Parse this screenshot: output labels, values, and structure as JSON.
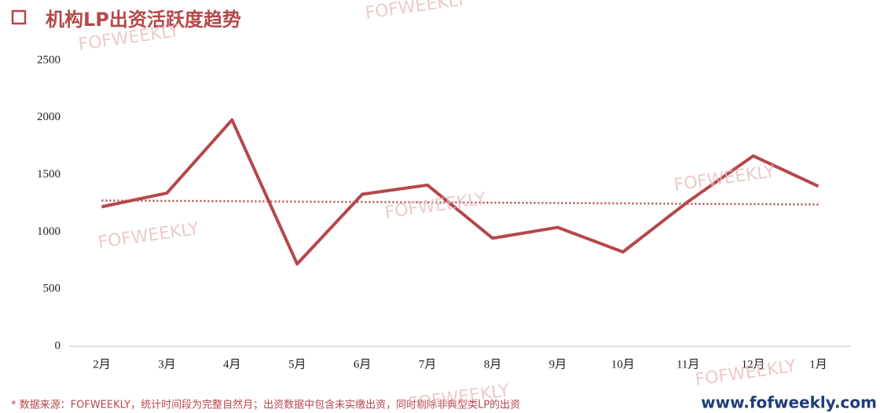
{
  "title": "机构LP出资活跃度趋势",
  "chart_data": {
    "type": "line",
    "categories": [
      "2月",
      "3月",
      "4月",
      "5月",
      "6月",
      "7月",
      "8月",
      "9月",
      "10月",
      "11月",
      "12月",
      "1月"
    ],
    "series": [
      {
        "color": "#b5474a",
        "style": "solid",
        "values": [
          1220,
          1340,
          1980,
          720,
          1330,
          1410,
          945,
          1040,
          825,
          1265,
          1665,
          1400
        ]
      },
      {
        "color": "#b5474a",
        "style": "dotted",
        "values": [
          1275,
          1272,
          1269,
          1265,
          1262,
          1259,
          1256,
          1253,
          1250,
          1246,
          1243,
          1240
        ]
      }
    ],
    "ylim": [
      0,
      2500
    ],
    "yticks": [
      0,
      500,
      1000,
      1500,
      2000,
      2500
    ],
    "grid": false
  },
  "watermarks": [
    "FOFWEEKLY",
    "FOFWEEKLY",
    "FOFWEEKLY",
    "FOFWEEKLY",
    "FOFWEEKLY",
    "FOFWEEKLY",
    "FOFWEEKLY"
  ],
  "footnote": "*  数据来源：FOFWEEKLY，统计时间段为完整自然月；出资数据中包含未实缴出资，同时剔除非典型类LP的出资",
  "website": "www.fofweekly.com"
}
